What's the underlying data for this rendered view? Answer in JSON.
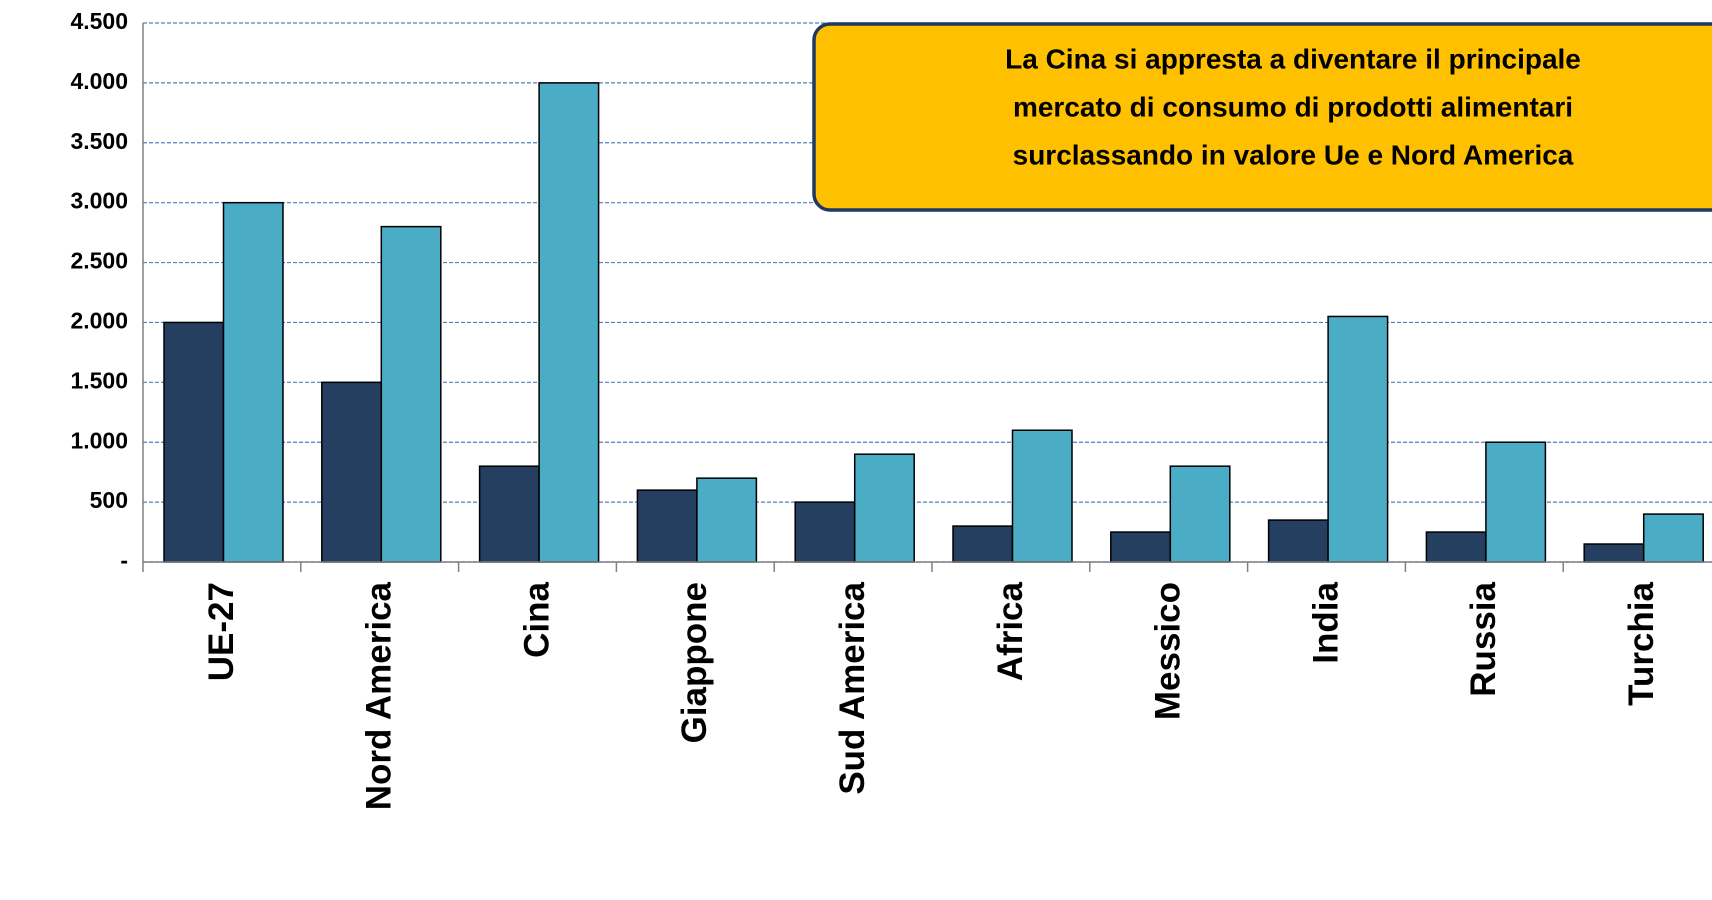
{
  "chart_data": {
    "type": "bar",
    "annotation": [
      "La Cina si appresta a diventare il principale",
      "mercato di consumo di prodotti alimentari",
      "surclassando in valore Ue e Nord America"
    ],
    "categories": [
      "UE-27",
      "Nord America",
      "Cina",
      "Giappone",
      "Sud America",
      "Africa",
      "Messico",
      "India",
      "Russia",
      "Turchia"
    ],
    "series": [
      {
        "color": "#243f60",
        "values": [
          2000,
          1500,
          800,
          600,
          500,
          300,
          250,
          350,
          250,
          150
        ]
      },
      {
        "color": "#4bacc6",
        "values": [
          3000,
          2800,
          4000,
          700,
          900,
          1100,
          800,
          2050,
          1000,
          400
        ]
      }
    ],
    "ylim": [
      0,
      4500
    ],
    "yticks": [
      {
        "value": 0,
        "label": "-"
      },
      500,
      {
        "value": 1000,
        "label": "1.000"
      },
      {
        "value": 1500,
        "label": "1.500"
      },
      {
        "value": 2000,
        "label": "2.000"
      },
      {
        "value": 2500,
        "label": "2.500"
      },
      {
        "value": 3000,
        "label": "3.000"
      },
      {
        "value": 3500,
        "label": "3.500"
      },
      {
        "value": 4000,
        "label": "4.000"
      },
      {
        "value": 4500,
        "label": "4.500"
      }
    ],
    "grid": true
  }
}
